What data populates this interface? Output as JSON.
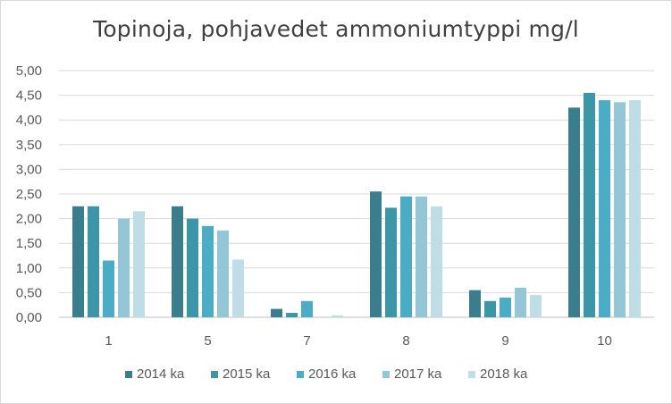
{
  "chart_data": {
    "type": "bar",
    "title": "Topinoja, pohjavedet ammoniumtyppi mg/l",
    "xlabel": "",
    "ylabel": "",
    "categories": [
      "1",
      "5",
      "7",
      "8",
      "9",
      "10"
    ],
    "yticks": [
      "0,00",
      "0,50",
      "1,00",
      "1,50",
      "2,00",
      "2,50",
      "3,00",
      "3,50",
      "4,00",
      "4,50",
      "5,00"
    ],
    "ylim": [
      0,
      5
    ],
    "grid": true,
    "legend_position": "bottom",
    "series": [
      {
        "name": "2014 ka",
        "color": "#3a7d8c",
        "values": [
          2.25,
          2.25,
          0.17,
          2.55,
          0.55,
          4.25
        ]
      },
      {
        "name": "2015 ka",
        "color": "#3b96a8",
        "values": [
          2.25,
          2.0,
          0.09,
          2.22,
          0.33,
          4.55
        ]
      },
      {
        "name": "2016 ka",
        "color": "#4bacc6",
        "values": [
          1.15,
          1.85,
          0.33,
          2.45,
          0.4,
          4.4
        ]
      },
      {
        "name": "2017 ka",
        "color": "#93c7d7",
        "values": [
          2.0,
          1.76,
          0.0,
          2.45,
          0.6,
          4.36
        ]
      },
      {
        "name": "2018 ka",
        "color": "#bfdde7",
        "values": [
          2.15,
          1.17,
          0.04,
          2.25,
          0.45,
          4.4
        ]
      }
    ]
  }
}
